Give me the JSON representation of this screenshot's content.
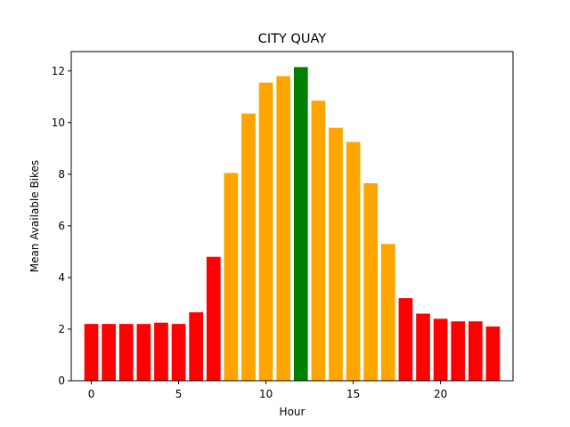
{
  "chart_data": {
    "type": "bar",
    "title": "CITY QUAY",
    "xlabel": "Hour",
    "ylabel": "Mean Available Bikes",
    "xlim": [
      -1.15,
      24.15
    ],
    "ylim": [
      0,
      12.75
    ],
    "xticks": [
      0,
      5,
      10,
      15,
      20
    ],
    "yticks": [
      0,
      2,
      4,
      6,
      8,
      10,
      12
    ],
    "grid": false,
    "x": [
      0,
      1,
      2,
      3,
      4,
      5,
      6,
      7,
      8,
      9,
      10,
      11,
      12,
      13,
      14,
      15,
      16,
      17,
      18,
      19,
      20,
      21,
      22,
      23
    ],
    "values": [
      2.2,
      2.2,
      2.2,
      2.2,
      2.25,
      2.2,
      2.65,
      4.8,
      8.05,
      10.35,
      11.55,
      11.8,
      12.15,
      10.85,
      9.8,
      9.25,
      7.65,
      5.3,
      3.2,
      2.6,
      2.4,
      2.3,
      2.3,
      2.1
    ],
    "bar_colors": [
      "#ff0000",
      "#ff0000",
      "#ff0000",
      "#ff0000",
      "#ff0000",
      "#ff0000",
      "#ff0000",
      "#ff0000",
      "#ffa500",
      "#ffa500",
      "#ffa500",
      "#ffa500",
      "#008000",
      "#ffa500",
      "#ffa500",
      "#ffa500",
      "#ffa500",
      "#ffa500",
      "#ff0000",
      "#ff0000",
      "#ff0000",
      "#ff0000",
      "#ff0000",
      "#ff0000"
    ]
  }
}
